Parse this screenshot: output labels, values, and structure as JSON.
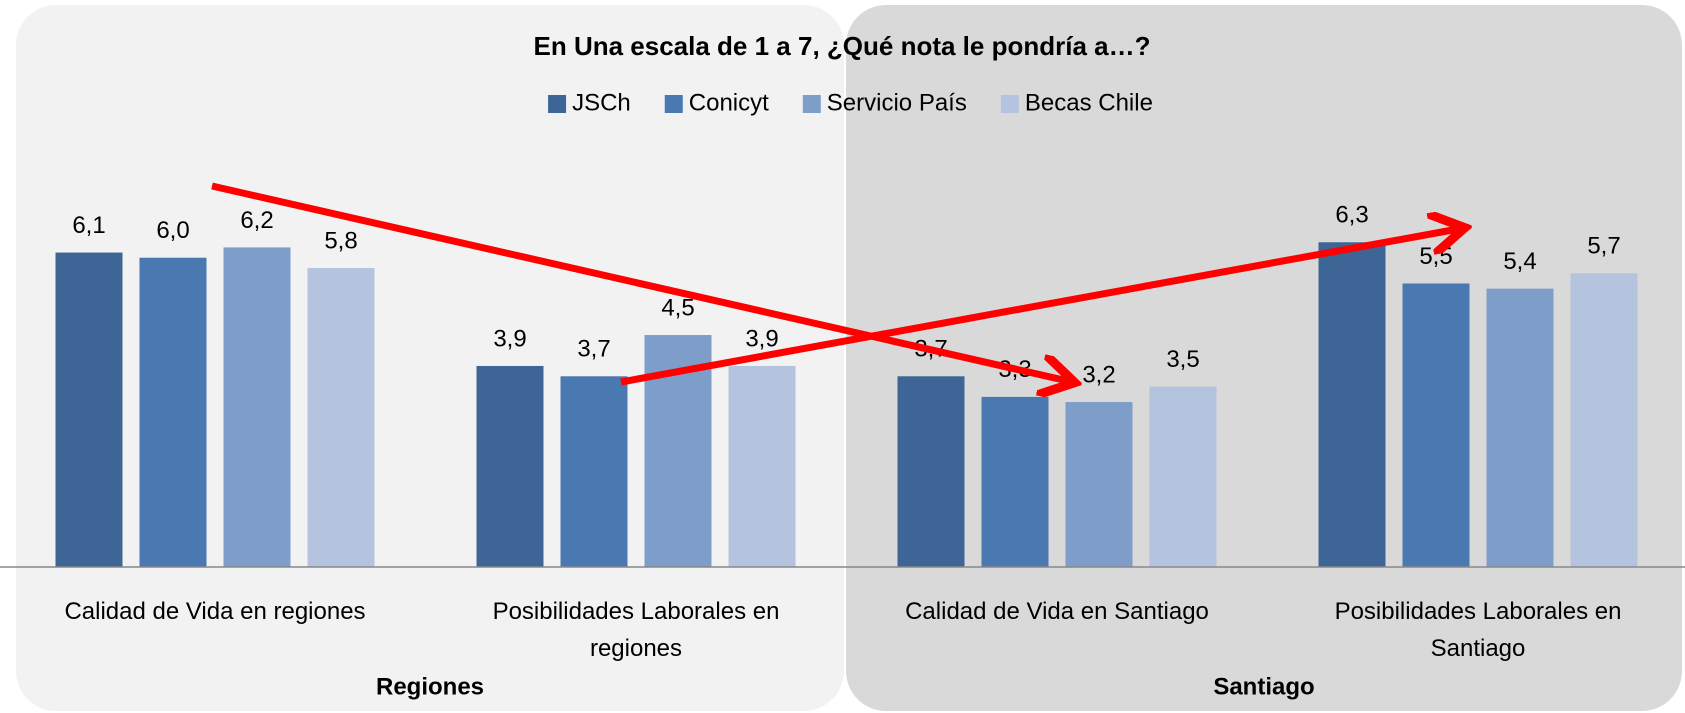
{
  "chart_data": {
    "type": "bar",
    "title": "En Una escala de 1 a 7, ¿Qué nota le pondría a…?",
    "categories": [
      "Calidad de Vida en regiones",
      "Posibilidades Laborales en regiones",
      "Calidad de Vida en Santiago",
      "Posibilidades Laborales en Santiago"
    ],
    "groups": [
      "Regiones",
      "Santiago"
    ],
    "series": [
      {
        "name": "JSCh",
        "color": "#3d6595",
        "values": [
          6.1,
          3.9,
          3.7,
          6.3
        ],
        "value_labels": [
          "6,1",
          "3,9",
          "3,7",
          "6,3"
        ]
      },
      {
        "name": "Conicyt",
        "color": "#4a78b0",
        "values": [
          6.0,
          3.7,
          3.3,
          5.5
        ],
        "value_labels": [
          "6,0",
          "3,7",
          "3,3",
          "5,5"
        ]
      },
      {
        "name": "Servicio País",
        "color": "#7f9dc9",
        "values": [
          6.2,
          4.5,
          3.2,
          5.4
        ],
        "value_labels": [
          "6,2",
          "4,5",
          "3,2",
          "5,4"
        ]
      },
      {
        "name": "Becas Chile",
        "color": "#b4c4df",
        "values": [
          5.8,
          3.9,
          3.5,
          5.7
        ],
        "value_labels": [
          "5,8",
          "3,9",
          "3,5",
          "5,7"
        ]
      }
    ],
    "ylim": [
      0,
      11
    ],
    "legend": "top"
  }
}
